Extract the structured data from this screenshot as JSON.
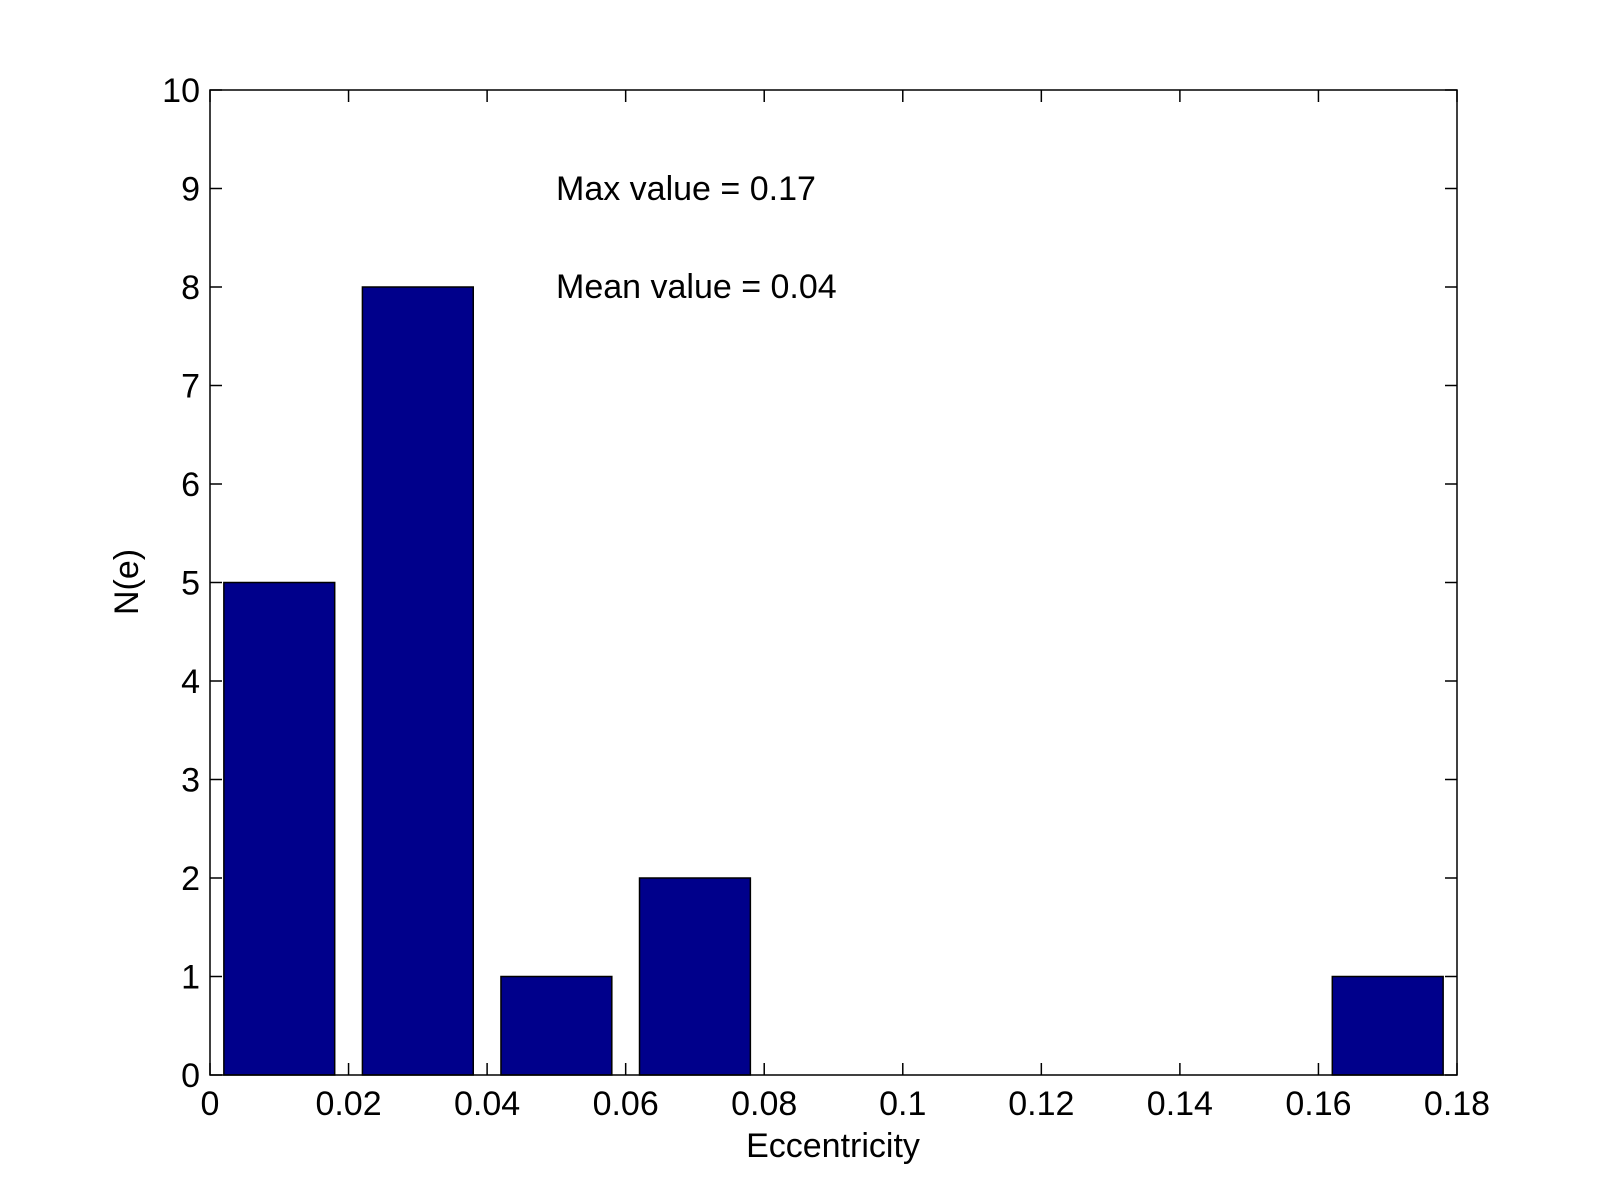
{
  "chart_data": {
    "type": "bar",
    "title": "",
    "xlabel": "Eccentricity",
    "ylabel": "N(e)",
    "xlim": [
      0,
      0.18
    ],
    "ylim": [
      0,
      10
    ],
    "xticks": [
      "0",
      "0.02",
      "0.04",
      "0.06",
      "0.08",
      "0.1",
      "0.12",
      "0.14",
      "0.16",
      "0.18"
    ],
    "yticks": [
      "0",
      "1",
      "2",
      "3",
      "4",
      "5",
      "6",
      "7",
      "8",
      "9",
      "10"
    ],
    "bin_width": 0.02,
    "bar_relative_width": 0.8,
    "bins": [
      {
        "x": 0.01,
        "value": 5
      },
      {
        "x": 0.03,
        "value": 8
      },
      {
        "x": 0.05,
        "value": 1
      },
      {
        "x": 0.07,
        "value": 2
      },
      {
        "x": 0.09,
        "value": 0
      },
      {
        "x": 0.11,
        "value": 0
      },
      {
        "x": 0.13,
        "value": 0
      },
      {
        "x": 0.15,
        "value": 0
      },
      {
        "x": 0.17,
        "value": 1
      }
    ],
    "annotations": [
      "Max value = 0.17",
      "Mean value = 0.04"
    ],
    "grid": false,
    "bar_color": "#00008B",
    "box": true
  }
}
